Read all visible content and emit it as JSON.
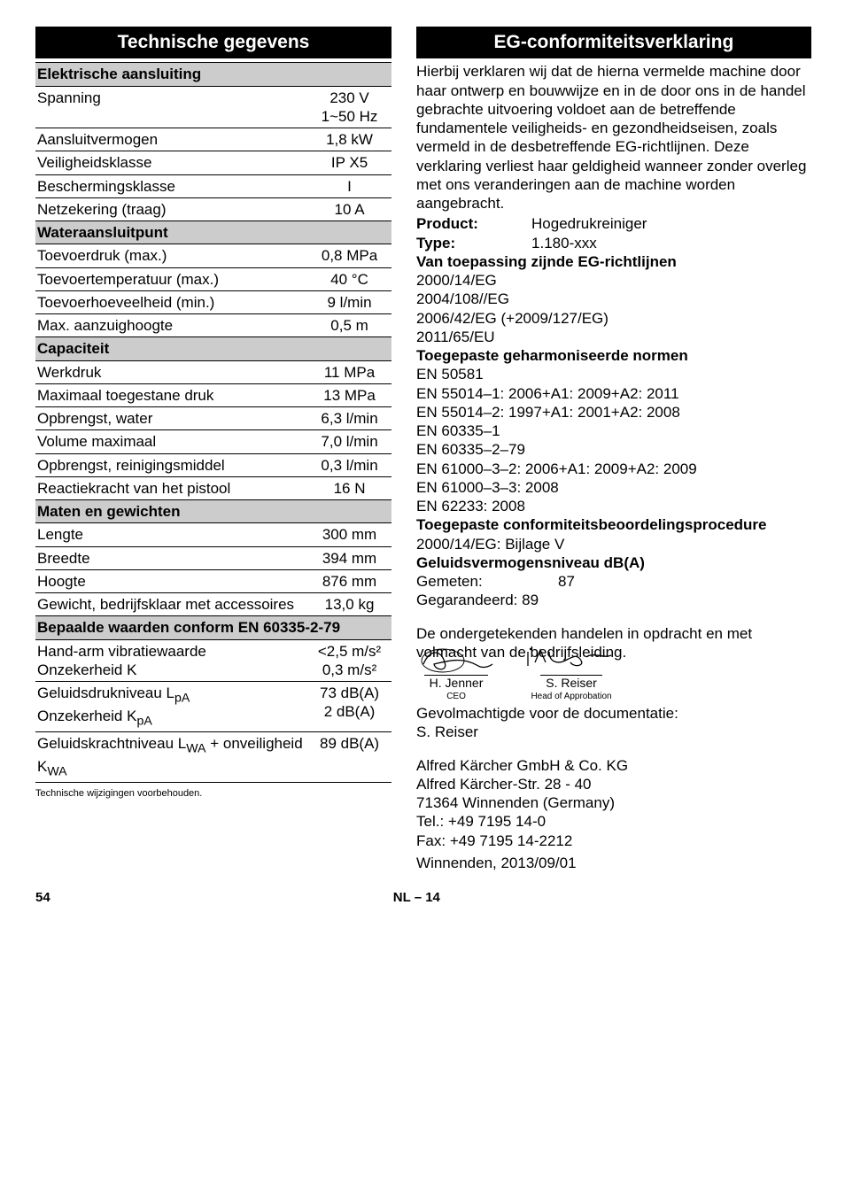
{
  "left": {
    "title": "Technische gegevens",
    "sections": [
      {
        "head": "Elektrische aansluiting",
        "rows": [
          {
            "label": "Spanning",
            "value": "230 V\n1~50 Hz"
          },
          {
            "label": "Aansluitvermogen",
            "value": "1,8 kW"
          },
          {
            "label": "Veiligheidsklasse",
            "value": "IP X5"
          },
          {
            "label": "Beschermingsklasse",
            "value": "I"
          },
          {
            "label": "Netzekering (traag)",
            "value": "10 A"
          }
        ]
      },
      {
        "head": "Wateraansluitpunt",
        "rows": [
          {
            "label": "Toevoerdruk (max.)",
            "value": "0,8 MPa"
          },
          {
            "label": "Toevoertemperatuur (max.)",
            "value": "40 °C"
          },
          {
            "label": "Toevoerhoeveelheid (min.)",
            "value": "9 l/min"
          },
          {
            "label": "Max. aanzuighoogte",
            "value": "0,5 m"
          }
        ]
      },
      {
        "head": "Capaciteit",
        "rows": [
          {
            "label": "Werkdruk",
            "value": "11 MPa"
          },
          {
            "label": "Maximaal toegestane druk",
            "value": "13 MPa"
          },
          {
            "label": "Opbrengst, water",
            "value": "6,3 l/min"
          },
          {
            "label": "Volume maximaal",
            "value": "7,0 l/min"
          },
          {
            "label": "Opbrengst, reinigingsmiddel",
            "value": "0,3 l/min"
          },
          {
            "label": "Reactiekracht van het pistool",
            "value": "16 N"
          }
        ]
      },
      {
        "head": "Maten en gewichten",
        "rows": [
          {
            "label": "Lengte",
            "value": "300 mm"
          },
          {
            "label": "Breedte",
            "value": "394 mm"
          },
          {
            "label": "Hoogte",
            "value": "876 mm"
          },
          {
            "label": "Gewicht, bedrijfsklaar met accessoires",
            "value": "13,0 kg"
          }
        ]
      },
      {
        "head": "Bepaalde waarden conform EN 60335-2-79",
        "rows": [
          {
            "label": "Hand-arm vibratiewaarde\nOnzekerheid K",
            "value": "<2,5 m/s²\n0,3 m/s²"
          },
          {
            "label": "Geluidsdrukniveau L<sub>pA</sub>\nOnzekerheid K<sub>pA</sub>",
            "value": "73 dB(A)\n2 dB(A)",
            "html": true
          },
          {
            "label": "Geluidskrachtniveau L<sub>WA</sub> + onveiligheid K<sub>WA</sub>",
            "value": "89 dB(A)",
            "html": true
          }
        ]
      }
    ],
    "footnote": "Technische wijzigingen voorbehouden."
  },
  "right": {
    "title": "EG-conformiteitsverklaring",
    "intro": "Hierbij verklaren wij dat de hierna vermelde machine door haar ontwerp en bouwwijze en in de door ons in de handel gebrachte uitvoering voldoet aan de betreffende fundamentele veiligheids- en gezondheidseisen, zoals vermeld in de desbetreffende EG-richtlijnen. Deze verklaring verliest haar geldigheid wanneer zonder overleg met ons veranderingen aan de machine worden aangebracht.",
    "product_k": "Product:",
    "product_v": "Hogedrukreiniger",
    "type_k": "Type:",
    "type_v": "1.180-xxx",
    "directives_head": "Van toepassing zijnde EG-richtlijnen",
    "directives": [
      "2000/14/EG",
      "2004/108//EG",
      "2006/42/EG (+2009/127/EG)",
      "2011/65/EU"
    ],
    "norms_head": "Toegepaste geharmoniseerde normen",
    "norms": [
      "EN 50581",
      "EN 55014–1: 2006+A1: 2009+A2: 2011",
      "EN 55014–2: 1997+A1: 2001+A2: 2008",
      "EN 60335–1",
      "EN 60335–2–79",
      "EN 61000–3–2: 2006+A1: 2009+A2: 2009",
      "EN 61000–3–3: 2008",
      "EN 62233: 2008"
    ],
    "conformity_head": "Toegepaste conformiteitsbeoordelingsprocedure",
    "conformity": "2000/14/EG: Bijlage V",
    "sound_head": "Geluidsvermogensniveau dB(A)",
    "sound_measured_k": "Gemeten:",
    "sound_measured_v": "87",
    "sound_guaranteed": "Gegarandeerd: 89",
    "closing": "De ondergetekenden handelen in opdracht en met volmacht van de bedrijfsleiding.",
    "sig1_name": "H. Jenner",
    "sig1_role": "CEO",
    "sig2_name": "S. Reiser",
    "sig2_role": "Head of Approbation",
    "auth": "Gevolmachtigde voor de documentatie:",
    "auth_name": "S. Reiser",
    "company": [
      "Alfred Kärcher GmbH & Co. KG",
      "Alfred Kärcher-Str. 28 - 40",
      "71364 Winnenden (Germany)",
      "Tel.: +49 7195 14-0",
      "Fax: +49 7195 14-2212"
    ],
    "date": "Winnenden, 2013/09/01"
  },
  "footer": {
    "page": "54",
    "mid": "NL – 14"
  }
}
